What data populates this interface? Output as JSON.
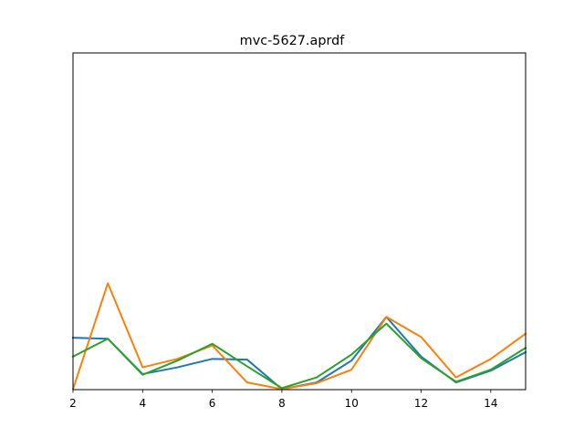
{
  "chart_data": {
    "type": "line",
    "title": "mvc-5627.aprdf",
    "xlabel": "",
    "ylabel": "",
    "xlim": [
      2,
      15
    ],
    "ylim": [
      0,
      1
    ],
    "x": [
      2,
      3,
      4,
      5,
      6,
      7,
      8,
      9,
      10,
      11,
      12,
      13,
      14,
      15
    ],
    "x_ticks": [
      2,
      4,
      6,
      8,
      10,
      12,
      14
    ],
    "x_tick_labels": [
      "2",
      "4",
      "6",
      "8",
      "10",
      "12",
      "14"
    ],
    "y_ticks_visible": false,
    "grid": false,
    "legend": "none",
    "series": [
      {
        "color": "#1f77b4",
        "values": [
          0.153,
          0.15,
          0.045,
          0.065,
          0.09,
          0.088,
          0.0,
          0.02,
          0.085,
          0.215,
          0.097,
          0.02,
          0.055,
          0.11
        ]
      },
      {
        "color": "#ff7f0e",
        "values": [
          0.0,
          0.315,
          0.065,
          0.09,
          0.13,
          0.02,
          0.0,
          0.018,
          0.058,
          0.215,
          0.155,
          0.035,
          0.09,
          0.165
        ]
      },
      {
        "color": "#2ca02c",
        "values": [
          0.097,
          0.15,
          0.043,
          0.085,
          0.135,
          0.068,
          0.003,
          0.035,
          0.103,
          0.195,
          0.092,
          0.022,
          0.058,
          0.123
        ]
      }
    ]
  }
}
